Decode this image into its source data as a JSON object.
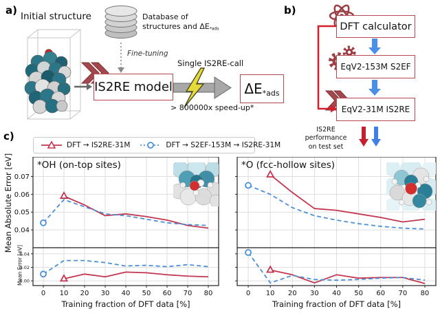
{
  "panel_a": {
    "label": "a)",
    "initial_structure_label": "Initial structure",
    "database_label_line1": "Database of",
    "database_label_line2": "structures and ΔE",
    "database_label_sub": "*ads",
    "fine_tuning_label": "Fine-tuning",
    "is2re_model_label": "IS2RE model",
    "single_call_label": "Single IS2RE-call",
    "speedup_label": "> 800000x speed-up*",
    "delta_e_label": "ΔE",
    "delta_e_sub": "*ads"
  },
  "panel_b": {
    "label": "b)",
    "box_dft": "DFT calculator",
    "box_s2ef": "EqV2-153M S2EF",
    "box_is2re": "EqV2-31M IS2RE",
    "perf_line1": "IS2RE performance",
    "perf_line2": "on test set"
  },
  "panel_c": {
    "label": "c)",
    "legend": [
      {
        "label": "DFT → IS2RE-31M",
        "color": "#c4354f",
        "marker": "triangle",
        "style": "solid"
      },
      {
        "label": "DFT → S2EF-153M → IS2RE-31M",
        "color": "#4a90d9",
        "marker": "circle",
        "style": "dashed"
      }
    ],
    "colors": {
      "red_series": "#c4354f",
      "blue_series": "#4a90d9"
    }
  },
  "chart_data": [
    {
      "type": "line",
      "title": "*OH (on-top sites)",
      "xlabel": "Training fraction of DFT data [%]",
      "x": [
        0,
        10,
        20,
        30,
        40,
        50,
        60,
        70,
        80
      ],
      "xticklabels": [
        "0",
        "10",
        "20",
        "30",
        "40",
        "50",
        "60",
        "70",
        "80"
      ],
      "xlim": [
        -5,
        85
      ],
      "top": {
        "ylabel": "Mean Absolute Error [eV]",
        "ylim": [
          0.03,
          0.081
        ],
        "yticks": [
          0.04,
          0.05,
          0.06,
          0.07
        ],
        "yticklabels": [
          "0.04",
          "0.05",
          "0.06",
          "0.07"
        ],
        "series": [
          {
            "name": "DFT → IS2RE-31M",
            "color": "#c4354f",
            "dash": false,
            "marker": "triangle",
            "values": [
              null,
              0.059,
              0.054,
              0.048,
              0.049,
              0.0475,
              0.0455,
              0.0425,
              0.041
            ]
          },
          {
            "name": "DFT → S2EF-153M → IS2RE-31M",
            "color": "#4a90d9",
            "dash": true,
            "marker": "circle",
            "values": [
              0.044,
              0.057,
              0.053,
              0.049,
              0.048,
              0.046,
              0.044,
              0.043,
              0.0425
            ]
          }
        ]
      },
      "bottom": {
        "ylabel": "Mean Error [eV]",
        "ylim": [
          -0.007,
          0.049
        ],
        "yticks": [
          0.0,
          0.02,
          0.04
        ],
        "yticklabels": [
          "0.00",
          "0.02",
          "0.04"
        ],
        "series": [
          {
            "name": "DFT → IS2RE-31M",
            "color": "#c4354f",
            "dash": false,
            "marker": "triangle",
            "values": [
              null,
              0.003,
              0.01,
              0.006,
              0.013,
              0.012,
              0.009,
              0.007,
              0.006
            ]
          },
          {
            "name": "DFT → S2EF-153M → IS2RE-31M",
            "color": "#4a90d9",
            "dash": true,
            "marker": "circle",
            "values": [
              0.01,
              0.03,
              0.03,
              0.027,
              0.022,
              0.023,
              0.021,
              0.024,
              0.021
            ]
          }
        ]
      }
    },
    {
      "type": "line",
      "title": "*O (fcc-hollow sites)",
      "xlabel": "Training fraction of DFT data [%]",
      "x": [
        0,
        10,
        20,
        30,
        40,
        50,
        60,
        70,
        80
      ],
      "xticklabels": [
        "0",
        "10",
        "20",
        "30",
        "40",
        "50",
        "60",
        "70",
        "80"
      ],
      "xlim": [
        -5,
        85
      ],
      "top": {
        "ylabel": "Mean Absolute Error [eV]",
        "ylim": [
          0.03,
          0.081
        ],
        "yticks": [
          0.04,
          0.05,
          0.06,
          0.07
        ],
        "yticklabels": [
          "0.04",
          "0.05",
          "0.06",
          "0.07"
        ],
        "series": [
          {
            "name": "DFT → IS2RE-31M",
            "color": "#c4354f",
            "dash": false,
            "marker": "triangle",
            "values": [
              null,
              0.071,
              0.061,
              0.052,
              0.051,
              0.049,
              0.047,
              0.0445,
              0.046
            ]
          },
          {
            "name": "DFT → S2EF-153M → IS2RE-31M",
            "color": "#4a90d9",
            "dash": true,
            "marker": "circle",
            "values": [
              0.065,
              0.06,
              0.0525,
              0.048,
              0.0455,
              0.0435,
              0.042,
              0.041,
              0.0405
            ]
          }
        ]
      },
      "bottom": {
        "ylabel": "Mean Error [eV]",
        "ylim": [
          -0.007,
          0.049
        ],
        "yticks": [
          0.0,
          0.02,
          0.04
        ],
        "yticklabels": [
          "0.00",
          "0.02",
          "0.04"
        ],
        "series": [
          {
            "name": "DFT → IS2RE-31M",
            "color": "#c4354f",
            "dash": false,
            "marker": "triangle",
            "values": [
              null,
              0.016,
              0.009,
              -0.003,
              0.009,
              0.004,
              0.005,
              0.005,
              -0.004
            ]
          },
          {
            "name": "DFT → S2EF-153M → IS2RE-31M",
            "color": "#4a90d9",
            "dash": true,
            "marker": "circle",
            "values": [
              0.042,
              -0.003,
              0.008,
              0.002,
              0.001,
              0.002,
              0.004,
              0.005,
              0.001
            ]
          }
        ]
      }
    }
  ]
}
